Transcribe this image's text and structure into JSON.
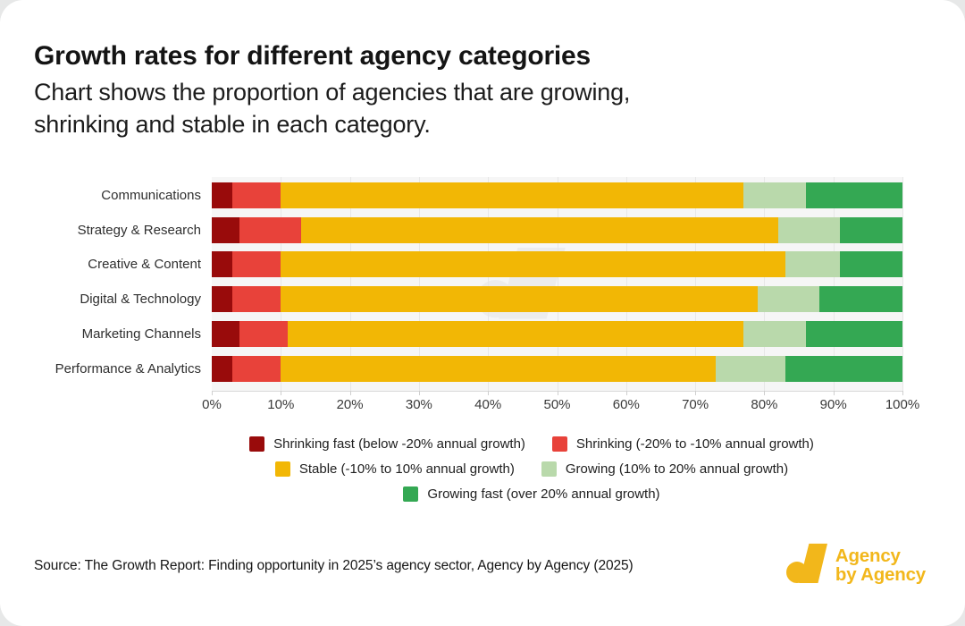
{
  "page": {
    "background": "#e7e8e8",
    "card_background": "#ffffff"
  },
  "header": {
    "title": "Growth rates for different agency categories",
    "subtitle_line1": "Chart shows the proportion of agencies that are growing,",
    "subtitle_line2": "shrinking and stable in each category."
  },
  "chart_data": {
    "type": "bar",
    "stacked": true,
    "orientation": "horizontal",
    "title": "Growth rates for different agency categories",
    "categories": [
      "Communications",
      "Strategy & Research",
      "Creative & Content",
      "Digital & Technology",
      "Marketing Channels",
      "Performance & Analytics"
    ],
    "series": [
      {
        "name": "Shrinking fast (below -20% annual growth)",
        "color": "#990B0B",
        "values": [
          3,
          4,
          3,
          3,
          4,
          3
        ]
      },
      {
        "name": "Shrinking (-20% to -10% annual growth)",
        "color": "#E8423A",
        "values": [
          7,
          9,
          7,
          7,
          7,
          7
        ]
      },
      {
        "name": "Stable (-10% to 10% annual growth)",
        "color": "#F2B705",
        "values": [
          67,
          69,
          73,
          69,
          66,
          63
        ]
      },
      {
        "name": "Growing (10% to 20% annual growth)",
        "color": "#B9D9AB",
        "values": [
          9,
          9,
          8,
          9,
          9,
          10
        ]
      },
      {
        "name": "Growing fast (over 20% annual growth)",
        "color": "#34A853",
        "values": [
          14,
          9,
          9,
          12,
          14,
          17
        ]
      }
    ],
    "x_ticks": [
      "0%",
      "10%",
      "20%",
      "30%",
      "40%",
      "50%",
      "60%",
      "70%",
      "80%",
      "90%",
      "100%"
    ],
    "xlim": [
      0,
      100
    ],
    "grid": true,
    "legend_position": "bottom",
    "legend_rows": [
      [
        0,
        1
      ],
      [
        2,
        3
      ],
      [
        4
      ]
    ]
  },
  "footer": {
    "source": "Source: The Growth Report: Finding opportunity in 2025’s agency sector, Agency by Agency (2025)",
    "logo": {
      "line1": "Agency",
      "line2": "by Agency",
      "color": "#F2B71B"
    }
  }
}
